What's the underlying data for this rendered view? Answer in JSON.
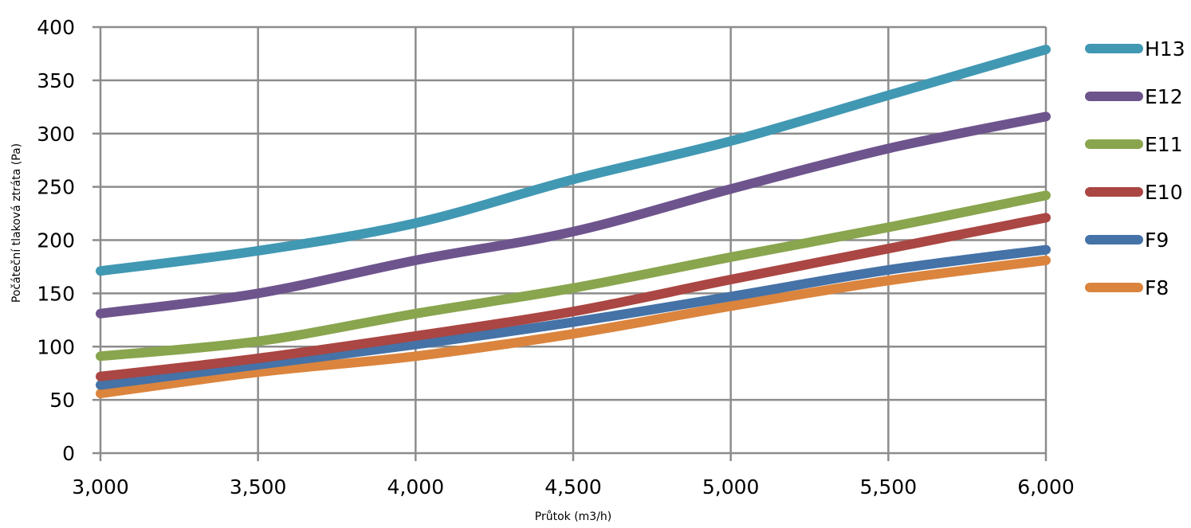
{
  "chart_data": {
    "type": "line",
    "xlabel": "Průtok (m3/h)",
    "ylabel": "Počáteční tlaková ztráta (Pa)",
    "xlim": [
      3000,
      6000
    ],
    "ylim": [
      0,
      400
    ],
    "x": [
      3000,
      3500,
      4000,
      4500,
      5000,
      5500,
      6000
    ],
    "x_tick_labels": [
      "3,000",
      "3,500",
      "4,000",
      "4,500",
      "5,000",
      "5,500",
      "6,000"
    ],
    "y_ticks": [
      0,
      50,
      100,
      150,
      200,
      250,
      300,
      350,
      400
    ],
    "y_tick_labels": [
      "0",
      "50",
      "100",
      "150",
      "200",
      "250",
      "300",
      "350",
      "400"
    ],
    "grid": true,
    "legend_position": "right",
    "series": [
      {
        "name": "H13",
        "color": "#4198B3",
        "values": [
          171,
          190,
          216,
          257,
          293,
          336,
          379
        ]
      },
      {
        "name": "E12",
        "color": "#6E548D",
        "values": [
          131,
          150,
          181,
          208,
          248,
          286,
          316
        ]
      },
      {
        "name": "E11",
        "color": "#89A54E",
        "values": [
          91,
          105,
          131,
          155,
          184,
          212,
          242
        ]
      },
      {
        "name": "E10",
        "color": "#AA4643",
        "values": [
          72,
          89,
          110,
          133,
          163,
          192,
          221
        ]
      },
      {
        "name": "F9",
        "color": "#4572A7",
        "values": [
          64,
          83,
          102,
          123,
          147,
          172,
          191
        ]
      },
      {
        "name": "F8",
        "color": "#DB843D",
        "values": [
          56,
          76,
          91,
          112,
          138,
          162,
          181
        ]
      }
    ]
  }
}
